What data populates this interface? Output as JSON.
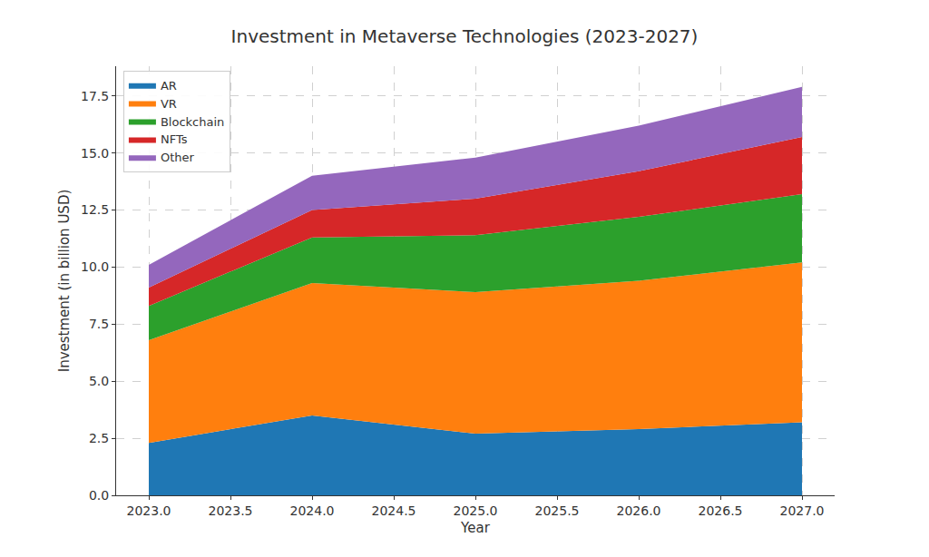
{
  "chart_data": {
    "type": "area",
    "title": "Investment in Metaverse Technologies (2023-2027)",
    "x_label": "Year",
    "y_label": "Investment (in billion USD)",
    "stacked": true,
    "grid": true,
    "legend": "upper left",
    "x": [
      2023,
      2024,
      2025,
      2026,
      2027
    ],
    "series": [
      {
        "name": "AR",
        "color": "#1f77b4",
        "values": [
          2.3,
          3.5,
          2.7,
          2.9,
          3.2
        ]
      },
      {
        "name": "VR",
        "color": "#ff7f0e",
        "values": [
          4.5,
          5.8,
          6.2,
          6.5,
          7.0
        ]
      },
      {
        "name": "Blockchain",
        "color": "#2ca02c",
        "values": [
          1.5,
          2.0,
          2.5,
          2.8,
          3.0
        ]
      },
      {
        "name": "NFTs",
        "color": "#d62728",
        "values": [
          0.8,
          1.2,
          1.6,
          2.0,
          2.5
        ]
      },
      {
        "name": "Other",
        "color": "#9467bd",
        "values": [
          1.0,
          1.5,
          1.8,
          2.0,
          2.2
        ]
      }
    ],
    "xlim": [
      2022.8,
      2027.2
    ],
    "xticks": [
      {
        "value": 2023,
        "label": "2023.0"
      },
      2023.5,
      {
        "value": 2024,
        "label": "2024.0"
      },
      2024.5,
      {
        "value": 2025,
        "label": "2025.0"
      },
      2025.5,
      {
        "value": 2026,
        "label": "2026.0"
      },
      2026.5,
      {
        "value": 2027,
        "label": "2027.0"
      }
    ],
    "ylim": [
      0,
      18.8
    ],
    "yticks": [
      {
        "value": 0,
        "label": "0.0"
      },
      2.5,
      {
        "value": 5,
        "label": "5.0"
      },
      7.5,
      {
        "value": 10,
        "label": "10.0"
      },
      12.5,
      {
        "value": 15,
        "label": "15.0"
      },
      17.5
    ]
  }
}
